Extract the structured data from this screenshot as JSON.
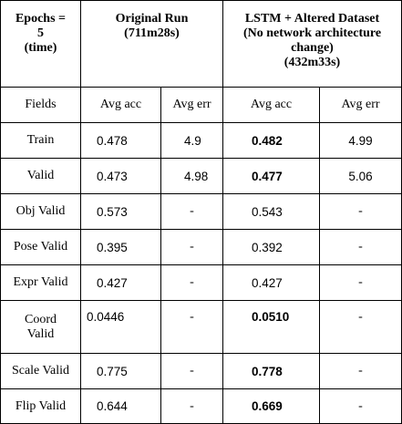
{
  "header": {
    "corner_lines": [
      "Epochs =",
      "5",
      "(time)"
    ],
    "original_lines": [
      "Original Run",
      "(711m28s)"
    ],
    "lstm_lines": [
      "LSTM + Altered Dataset",
      "(No network architecture",
      "change)",
      "(432m33s)"
    ]
  },
  "subheader": {
    "fields": "Fields",
    "orig_acc": "Avg acc",
    "orig_err": "Avg err",
    "lstm_acc": "Avg acc",
    "lstm_err": "Avg err"
  },
  "rows": [
    {
      "field": "Train",
      "orig_acc": "0.478",
      "orig_err": "4.9",
      "lstm_acc": "0.482",
      "lstm_acc_bold": true,
      "lstm_err": "4.99"
    },
    {
      "field": "Valid",
      "orig_acc": "0.473",
      "orig_err": "4.98",
      "lstm_acc": "0.477",
      "lstm_acc_bold": true,
      "lstm_err": "5.06"
    },
    {
      "field": "Obj Valid",
      "orig_acc": "0.573",
      "orig_err": "-",
      "lstm_acc": "0.543",
      "lstm_acc_bold": false,
      "lstm_err": "-"
    },
    {
      "field": "Pose Valid",
      "orig_acc": "0.395",
      "orig_err": "-",
      "lstm_acc": "0.392",
      "lstm_acc_bold": false,
      "lstm_err": "-"
    },
    {
      "field": "Expr Valid",
      "orig_acc": "0.427",
      "orig_err": "-",
      "lstm_acc": "0.427",
      "lstm_acc_bold": false,
      "lstm_err": "-"
    },
    {
      "field_lines": [
        "Coord",
        "Valid"
      ],
      "orig_acc": "0.0446",
      "orig_err": "-",
      "lstm_acc": "0.0510",
      "lstm_acc_bold": true,
      "lstm_err": "-"
    },
    {
      "field": "Scale Valid",
      "orig_acc": "0.775",
      "orig_err": "-",
      "lstm_acc": "0.778",
      "lstm_acc_bold": true,
      "lstm_err": "-"
    },
    {
      "field": "Flip Valid",
      "orig_acc": "0.644",
      "orig_err": "-",
      "lstm_acc": "0.669",
      "lstm_acc_bold": true,
      "lstm_err": "-"
    }
  ]
}
